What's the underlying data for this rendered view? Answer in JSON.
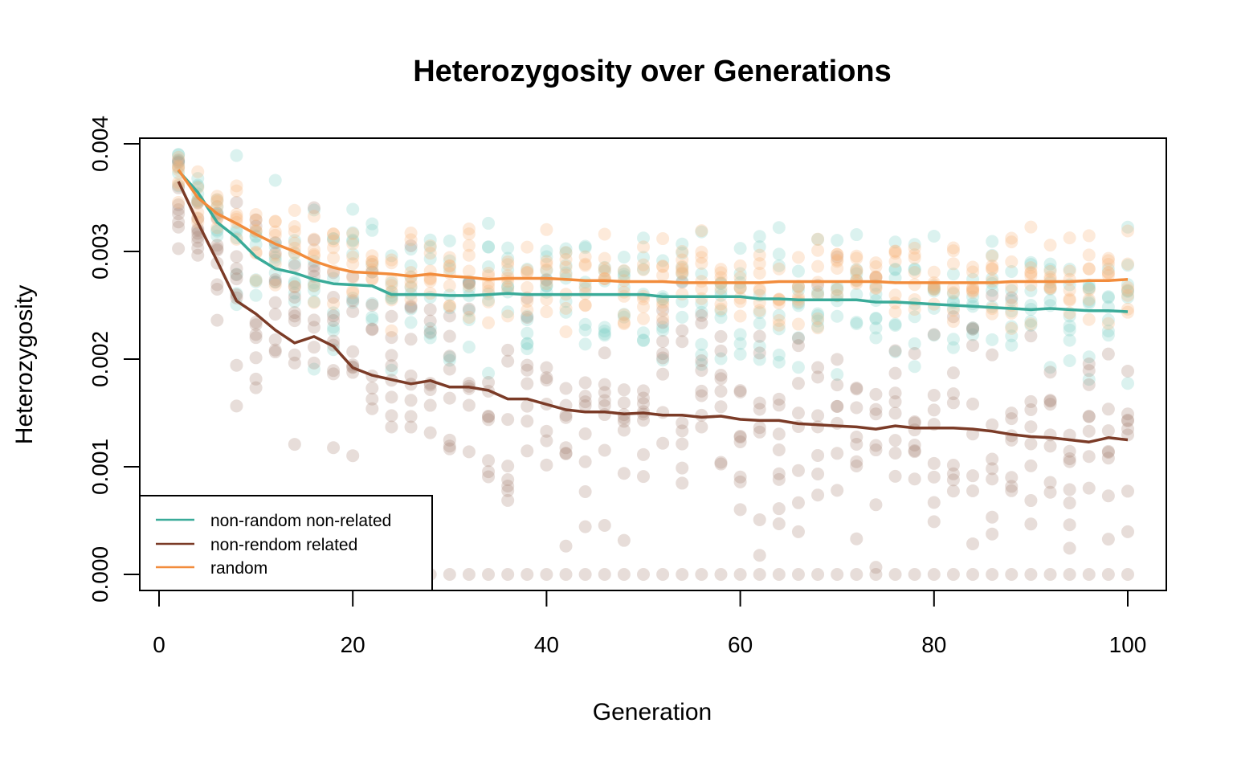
{
  "chart_data": {
    "type": "line",
    "title": "Heterozygosity over Generations",
    "xlabel": "Generation",
    "ylabel": "Heterozygosity",
    "xlim": [
      0,
      100
    ],
    "ylim": [
      0,
      0.004
    ],
    "x_ticks": [
      "0",
      "20",
      "40",
      "60",
      "80",
      "100"
    ],
    "y_ticks": [
      "0.000",
      "0.001",
      "0.002",
      "0.003",
      "0.004"
    ],
    "legend_position": "bottom-left",
    "grid": false,
    "x": [
      2,
      4,
      6,
      8,
      10,
      12,
      14,
      16,
      18,
      20,
      22,
      24,
      26,
      28,
      30,
      32,
      34,
      36,
      38,
      40,
      42,
      44,
      46,
      48,
      50,
      52,
      54,
      56,
      58,
      60,
      62,
      64,
      66,
      68,
      70,
      72,
      74,
      76,
      78,
      80,
      82,
      84,
      86,
      88,
      90,
      92,
      94,
      96,
      98,
      100
    ],
    "series": [
      {
        "name": "non-random non-related",
        "color": "#3aab99",
        "values": [
          0.00375,
          0.00355,
          0.00327,
          0.00313,
          0.00295,
          0.00284,
          0.0028,
          0.00274,
          0.0027,
          0.00269,
          0.00268,
          0.0026,
          0.0026,
          0.0026,
          0.00259,
          0.00259,
          0.0026,
          0.00261,
          0.0026,
          0.0026,
          0.0026,
          0.0026,
          0.0026,
          0.0026,
          0.0026,
          0.00258,
          0.00258,
          0.00258,
          0.00258,
          0.00258,
          0.00256,
          0.00256,
          0.00255,
          0.00255,
          0.00255,
          0.00255,
          0.00253,
          0.00253,
          0.00252,
          0.00251,
          0.0025,
          0.00249,
          0.00248,
          0.00247,
          0.00246,
          0.00247,
          0.00246,
          0.00245,
          0.00245,
          0.00244
        ]
      },
      {
        "name": "non-rendom related",
        "color": "#7b3b27",
        "values": [
          0.00365,
          0.00327,
          0.00291,
          0.00254,
          0.00242,
          0.00227,
          0.00215,
          0.00221,
          0.00212,
          0.00192,
          0.00185,
          0.00181,
          0.00177,
          0.0018,
          0.00174,
          0.00174,
          0.00171,
          0.00163,
          0.00163,
          0.00158,
          0.00153,
          0.00151,
          0.00151,
          0.00149,
          0.0015,
          0.00148,
          0.00148,
          0.00146,
          0.00147,
          0.00144,
          0.00143,
          0.00143,
          0.0014,
          0.00139,
          0.00138,
          0.00137,
          0.00135,
          0.00138,
          0.00136,
          0.00136,
          0.00136,
          0.00135,
          0.00133,
          0.0013,
          0.00128,
          0.00127,
          0.00125,
          0.00123,
          0.00127,
          0.00125
        ]
      },
      {
        "name": "random",
        "color": "#f28c3c",
        "values": [
          0.00376,
          0.0035,
          0.00335,
          0.00326,
          0.00316,
          0.00307,
          0.003,
          0.00291,
          0.00285,
          0.00281,
          0.0028,
          0.00279,
          0.00277,
          0.00279,
          0.00277,
          0.00276,
          0.00274,
          0.00275,
          0.00275,
          0.00275,
          0.00274,
          0.00273,
          0.00273,
          0.00272,
          0.00272,
          0.00272,
          0.00271,
          0.00271,
          0.00271,
          0.00271,
          0.00271,
          0.00272,
          0.00272,
          0.00272,
          0.00272,
          0.00272,
          0.00272,
          0.00271,
          0.00271,
          0.00271,
          0.00271,
          0.00271,
          0.00271,
          0.00272,
          0.00272,
          0.00272,
          0.00272,
          0.00273,
          0.00273,
          0.00274
        ]
      }
    ]
  }
}
